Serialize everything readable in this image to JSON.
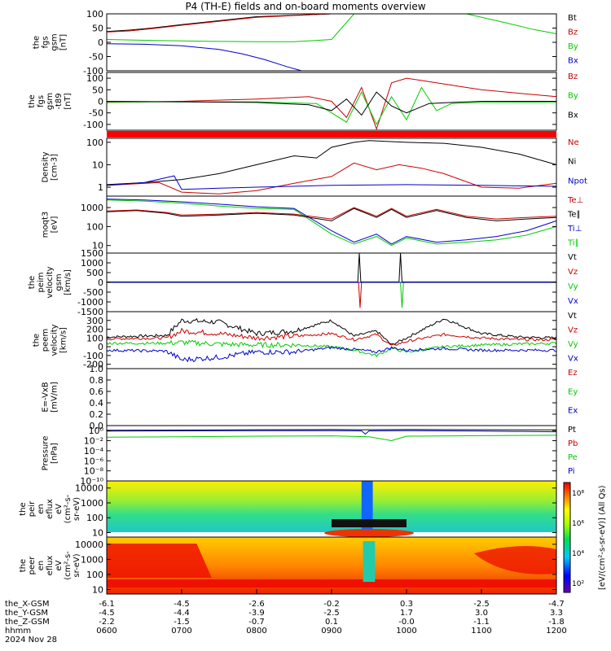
{
  "title": "P4 (TH-E) fields and on-board moments overview",
  "chart_data": [
    {
      "type": "line",
      "ylabel": [
        "the",
        "fgs",
        "gsm",
        "[nT]"
      ],
      "yticks": [
        "100",
        "50",
        "0",
        "-50",
        "-100"
      ],
      "ylim": [
        -100,
        100
      ],
      "legend": [
        {
          "name": "Bt",
          "color": "#000000"
        },
        {
          "name": "Bz",
          "color": "#cc0000"
        },
        {
          "name": "By",
          "color": "#00cc00"
        },
        {
          "name": "Bx",
          "color": "#0000cc"
        }
      ],
      "series": [
        {
          "name": "Bt",
          "color": "#000000",
          "x": [
            6.0,
            6.3,
            6.6,
            7.0,
            8.0,
            9.0,
            9.3
          ],
          "y": [
            38,
            43,
            50,
            62,
            90,
            100,
            100
          ]
        },
        {
          "name": "Bz",
          "color": "#cc0000",
          "x": [
            6.0,
            6.3,
            6.6,
            7.0,
            8.0,
            9.0,
            9.3
          ],
          "y": [
            36,
            40,
            48,
            60,
            88,
            100,
            100
          ]
        },
        {
          "name": "By",
          "color": "#00cc00",
          "x": [
            6.0,
            6.5,
            7.0,
            7.5,
            8.0,
            8.5,
            9.0,
            9.3,
            9.6,
            10.3,
            10.8,
            11.3,
            11.7,
            12.0
          ],
          "y": [
            10,
            7,
            5,
            3,
            2,
            2,
            10,
            100,
            100,
            100,
            100,
            70,
            45,
            30
          ]
        },
        {
          "name": "Bx",
          "color": "#0000cc",
          "x": [
            6.0,
            6.5,
            7.0,
            7.5,
            7.8,
            8.1,
            8.4,
            8.6
          ],
          "y": [
            -5,
            -7,
            -12,
            -25,
            -40,
            -60,
            -85,
            -100
          ]
        }
      ]
    },
    {
      "type": "line",
      "ylabel": [
        "the",
        "fgs",
        "gsm",
        "-t89",
        "[nT]"
      ],
      "yticks": [
        "100",
        "50",
        "0",
        "-50",
        "-100"
      ],
      "ylim": [
        -125,
        125
      ],
      "legend": [
        {
          "name": "Bz",
          "color": "#cc0000"
        },
        {
          "name": "By",
          "color": "#00cc00"
        },
        {
          "name": "Bx",
          "color": "#000000"
        }
      ],
      "series": [
        {
          "name": "Bz",
          "color": "#cc0000",
          "x": [
            6.0,
            7.0,
            8.0,
            8.7,
            9.0,
            9.2,
            9.4,
            9.6,
            9.8,
            10.0,
            10.2,
            10.4,
            10.6,
            10.8,
            11.0,
            11.5,
            12.0
          ],
          "y": [
            -5,
            0,
            10,
            20,
            0,
            -70,
            60,
            -120,
            80,
            100,
            90,
            80,
            70,
            60,
            50,
            35,
            20
          ]
        },
        {
          "name": "By",
          "color": "#00cc00",
          "x": [
            6.0,
            7.0,
            8.0,
            8.8,
            9.0,
            9.2,
            9.4,
            9.6,
            9.8,
            10.0,
            10.2,
            10.4,
            10.6,
            11.0,
            12.0
          ],
          "y": [
            -3,
            -2,
            -2,
            -10,
            -50,
            -90,
            40,
            -100,
            20,
            -80,
            60,
            -40,
            -10,
            -5,
            -3
          ]
        },
        {
          "name": "Bx",
          "color": "#000000",
          "x": [
            6.0,
            7.0,
            8.0,
            8.7,
            9.0,
            9.2,
            9.4,
            9.6,
            9.8,
            10.0,
            10.3,
            10.6,
            11.0,
            12.0
          ],
          "y": [
            0,
            -2,
            -5,
            -15,
            -40,
            10,
            -60,
            40,
            -20,
            -50,
            -10,
            -5,
            0,
            0
          ]
        }
      ]
    },
    {
      "type": "line",
      "ylabel": [
        "Density",
        "[cm-3]"
      ],
      "yticks": [
        "100",
        "10",
        "1"
      ],
      "ylim": [
        0.4,
        150
      ],
      "log": true,
      "legend": [
        {
          "name": "Ne",
          "color": "#cc0000"
        },
        {
          "name": "Ni",
          "color": "#000000"
        },
        {
          "name": "Npot",
          "color": "#0000cc"
        }
      ],
      "series": [
        {
          "name": "Ni",
          "color": "#000000",
          "x": [
            6.0,
            6.5,
            7.0,
            7.5,
            8.0,
            8.5,
            8.8,
            9.0,
            9.3,
            9.5,
            10.0,
            10.5,
            11.0,
            11.5,
            12.0
          ],
          "y": [
            1.3,
            1.6,
            2.2,
            4,
            10,
            25,
            20,
            60,
            100,
            120,
            100,
            90,
            60,
            30,
            10
          ]
        },
        {
          "name": "Ne",
          "color": "#cc0000",
          "x": [
            6.0,
            6.7,
            7.0,
            7.5,
            8.0,
            8.5,
            9.0,
            9.3,
            9.6,
            9.9,
            10.2,
            10.5,
            11.0,
            11.5,
            12.0
          ],
          "y": [
            1.2,
            1.6,
            0.6,
            0.5,
            0.7,
            1.5,
            3,
            12,
            6,
            10,
            7,
            4,
            1,
            0.9,
            1.5
          ]
        },
        {
          "name": "Npot",
          "color": "#0000cc",
          "x": [
            6.0,
            6.5,
            6.9,
            7.0,
            7.5,
            8.0,
            9.0,
            10.0,
            11.0,
            12.0
          ],
          "y": [
            1.2,
            1.6,
            3.2,
            0.8,
            0.9,
            1.0,
            1.2,
            1.3,
            1.2,
            1.1
          ]
        }
      ]
    },
    {
      "type": "line",
      "ylabel": [
        "moqt3",
        "[eV]"
      ],
      "yticks": [
        "1000",
        "100",
        "10"
      ],
      "ylim": [
        4,
        4000
      ],
      "log": true,
      "legend": [
        {
          "name": "Te⊥",
          "color": "#cc0000"
        },
        {
          "name": "Te∥",
          "color": "#000000"
        },
        {
          "name": "Ti⊥",
          "color": "#0000cc"
        },
        {
          "name": "Ti∥",
          "color": "#00cc00"
        }
      ],
      "series": [
        {
          "name": "Ti∥",
          "color": "#00cc00",
          "x": [
            6.0,
            6.5,
            7.0,
            7.5,
            8.0,
            8.5,
            9.0,
            9.3,
            9.6,
            9.8,
            10.0,
            10.4,
            10.8,
            11.2,
            11.6,
            12.0
          ],
          "y": [
            2500,
            2200,
            1700,
            1200,
            900,
            800,
            40,
            12,
            30,
            10,
            25,
            12,
            15,
            20,
            35,
            100
          ]
        },
        {
          "name": "Ti⊥",
          "color": "#0000cc",
          "x": [
            6.0,
            6.5,
            7.0,
            7.5,
            8.0,
            8.5,
            9.0,
            9.3,
            9.6,
            9.8,
            10.0,
            10.4,
            10.8,
            11.2,
            11.6,
            12.0
          ],
          "y": [
            2800,
            2500,
            2000,
            1500,
            1100,
            900,
            60,
            15,
            40,
            12,
            30,
            15,
            20,
            30,
            60,
            200
          ]
        },
        {
          "name": "Te∥",
          "color": "#000000",
          "x": [
            6.0,
            6.4,
            6.8,
            7.0,
            7.5,
            8.0,
            8.5,
            9.0,
            9.3,
            9.6,
            9.8,
            10.0,
            10.4,
            10.8,
            11.2,
            11.6,
            12.0
          ],
          "y": [
            600,
            700,
            500,
            350,
            400,
            500,
            400,
            200,
            900,
            300,
            800,
            300,
            700,
            300,
            200,
            250,
            300
          ]
        },
        {
          "name": "Te⊥",
          "color": "#cc0000",
          "x": [
            6.0,
            6.4,
            6.8,
            7.0,
            7.5,
            8.0,
            8.5,
            9.0,
            9.3,
            9.6,
            9.8,
            10.0,
            10.4,
            10.8,
            11.2,
            11.6,
            12.0
          ],
          "y": [
            650,
            750,
            550,
            400,
            450,
            550,
            450,
            250,
            1000,
            350,
            900,
            350,
            800,
            350,
            250,
            300,
            350
          ]
        }
      ]
    },
    {
      "type": "line",
      "ylabel": [
        "the",
        "peim",
        "velocity",
        "gsm",
        "[km/s]"
      ],
      "yticks": [
        "1500",
        "1000",
        "500",
        "0",
        "-500",
        "-1000",
        "-1500"
      ],
      "ylim": [
        -1500,
        1500
      ],
      "legend": [
        {
          "name": "Vt",
          "color": "#000000"
        },
        {
          "name": "Vz",
          "color": "#cc0000"
        },
        {
          "name": "Vy",
          "color": "#00cc00"
        },
        {
          "name": "Vx",
          "color": "#0000cc"
        }
      ],
      "series": [
        {
          "name": "Vt",
          "color": "#000000",
          "x": [
            6.0,
            9.35,
            9.37,
            9.39,
            9.9,
            9.92,
            9.94,
            12.0
          ],
          "y": [
            20,
            20,
            1500,
            20,
            20,
            1500,
            20,
            20
          ]
        },
        {
          "name": "Vz",
          "color": "#cc0000",
          "x": [
            6.0,
            9.36,
            9.38,
            9.4,
            12.0
          ],
          "y": [
            0,
            0,
            -1300,
            0,
            0
          ]
        },
        {
          "name": "Vy",
          "color": "#00cc00",
          "x": [
            6.0,
            9.92,
            9.94,
            9.96,
            12.0
          ],
          "y": [
            0,
            0,
            -1300,
            0,
            0
          ]
        },
        {
          "name": "Vx",
          "color": "#0000cc",
          "x": [
            6.0,
            12.0
          ],
          "y": [
            0,
            0
          ]
        }
      ]
    },
    {
      "type": "line",
      "ylabel": [
        "the",
        "peem",
        "velocity",
        "[km/s]"
      ],
      "yticks": [
        "300",
        "200",
        "100",
        "0",
        "-100",
        "-200"
      ],
      "ylim": [
        -250,
        400
      ],
      "noisy": true,
      "legend": [
        {
          "name": "Vt",
          "color": "#000000"
        },
        {
          "name": "Vz",
          "color": "#cc0000"
        },
        {
          "name": "Vy",
          "color": "#00cc00"
        },
        {
          "name": "Vx",
          "color": "#0000cc"
        }
      ],
      "series": [
        {
          "name": "Vt",
          "color": "#000000",
          "x": [
            6.0,
            6.8,
            7.0,
            7.5,
            8.0,
            8.5,
            9.0,
            9.3,
            9.6,
            9.8,
            10.0,
            10.5,
            11.0,
            11.5,
            12.0
          ],
          "y": [
            110,
            130,
            300,
            280,
            150,
            180,
            300,
            120,
            180,
            20,
            100,
            320,
            150,
            110,
            100
          ]
        },
        {
          "name": "Vz",
          "color": "#cc0000",
          "x": [
            6.0,
            6.8,
            7.0,
            7.5,
            8.0,
            8.5,
            9.0,
            9.3,
            9.6,
            9.8,
            10.0,
            10.5,
            11.0,
            11.5,
            12.0
          ],
          "y": [
            90,
            100,
            180,
            150,
            100,
            120,
            150,
            80,
            140,
            10,
            60,
            140,
            100,
            80,
            80
          ]
        },
        {
          "name": "Vy",
          "color": "#00cc00",
          "x": [
            6.0,
            6.8,
            7.0,
            7.5,
            8.0,
            8.5,
            9.0,
            9.3,
            9.6,
            9.8,
            10.0,
            10.5,
            11.0,
            11.5,
            12.0
          ],
          "y": [
            40,
            40,
            50,
            30,
            20,
            20,
            0,
            -40,
            -100,
            -20,
            -60,
            0,
            20,
            30,
            40
          ]
        },
        {
          "name": "Vx",
          "color": "#0000cc",
          "x": [
            6.0,
            6.8,
            7.0,
            7.5,
            8.0,
            8.5,
            9.0,
            9.3,
            9.6,
            9.8,
            10.0,
            10.5,
            11.0,
            11.5,
            12.0
          ],
          "y": [
            -40,
            -50,
            -150,
            -120,
            -60,
            -60,
            -10,
            -30,
            -60,
            -10,
            -40,
            -20,
            -40,
            -40,
            -40
          ]
        }
      ]
    },
    {
      "type": "line",
      "ylabel": [
        "E=-VxB",
        "[mV/m]"
      ],
      "yticks": [
        "1.0",
        "0.8",
        "0.6",
        "0.4",
        "0.2",
        "0.0"
      ],
      "ylim": [
        0,
        1
      ],
      "legend": [
        {
          "name": "Ez",
          "color": "#cc0000"
        },
        {
          "name": "Ey",
          "color": "#00cc00"
        },
        {
          "name": "Ex",
          "color": "#0000cc"
        }
      ],
      "series": []
    },
    {
      "type": "line",
      "ylabel": [
        "Pressure",
        "[nPa]"
      ],
      "yticks": [
        "10⁰",
        "10⁻²",
        "10⁻⁴",
        "10⁻⁶",
        "10⁻⁸",
        "10⁻¹⁰"
      ],
      "ylim": [
        1e-10,
        10
      ],
      "log": true,
      "legend": [
        {
          "name": "Pt",
          "color": "#000000"
        },
        {
          "name": "Pb",
          "color": "#cc0000"
        },
        {
          "name": "Pe",
          "color": "#00cc00"
        },
        {
          "name": "Pi",
          "color": "#0000cc"
        }
      ],
      "series": [
        {
          "name": "Pt",
          "color": "#000000",
          "x": [
            6.0,
            7.0,
            8.0,
            9.0,
            9.4,
            10.0,
            11.0,
            12.0
          ],
          "y": [
            1.2,
            1.3,
            1.5,
            1.6,
            1.5,
            1.6,
            1.5,
            1.4
          ]
        },
        {
          "name": "Pi",
          "color": "#0000cc",
          "x": [
            6.0,
            7.0,
            8.0,
            9.0,
            9.4,
            9.45,
            9.5,
            10.0,
            11.0,
            12.0
          ],
          "y": [
            0.8,
            0.9,
            1.0,
            1.0,
            0.9,
            0.2,
            0.9,
            1.0,
            0.8,
            0.6
          ]
        },
        {
          "name": "Pe",
          "color": "#00cc00",
          "x": [
            6.0,
            7.0,
            8.0,
            9.0,
            9.5,
            9.8,
            10.0,
            11.0,
            12.0
          ],
          "y": [
            0.05,
            0.06,
            0.08,
            0.09,
            0.06,
            0.01,
            0.08,
            0.1,
            0.12
          ]
        }
      ]
    },
    {
      "type": "heatmap",
      "ylabel": [
        "the",
        "peir",
        "en",
        "eflux",
        "eV",
        "(cm²-s-",
        "sr-eV)"
      ],
      "yticks": [
        "10000",
        "1000",
        "100",
        "10"
      ],
      "ylim": [
        5,
        30000
      ],
      "log": true
    },
    {
      "type": "heatmap",
      "ylabel": [
        "the",
        "peer",
        "en",
        "eflux",
        "eV",
        "(cm²-s-",
        "sr-eV)"
      ],
      "yticks": [
        "10000",
        "1000",
        "100",
        "10"
      ],
      "ylim": [
        5,
        30000
      ],
      "log": true
    }
  ],
  "colorbar": {
    "ticks": [
      "10⁸",
      "10⁶",
      "10⁴",
      "10²"
    ],
    "label": "[eV/(cm²-s-sr-eV)] (All Qs)"
  },
  "xaxis": {
    "rows": [
      {
        "name": "the_X-GSM",
        "values": [
          "-6.1",
          "-4.5",
          "-2.6",
          "-0.2",
          "0.3",
          "-2.5",
          "-4.7"
        ]
      },
      {
        "name": "the_Y-GSM",
        "values": [
          "-4.5",
          "-4.4",
          "-3.9",
          "-2.5",
          "1.7",
          "3.0",
          "3.3"
        ]
      },
      {
        "name": "the_Z-GSM",
        "values": [
          "-2.2",
          "-1.5",
          "-0.7",
          "0.1",
          "-0.0",
          "-1.1",
          "-1.8"
        ]
      },
      {
        "name": "hhmm",
        "values": [
          "0600",
          "0700",
          "0800",
          "0900",
          "1000",
          "1100",
          "1200"
        ]
      }
    ],
    "date": "2024 Nov 28",
    "xlim": [
      6.0,
      12.0
    ]
  }
}
